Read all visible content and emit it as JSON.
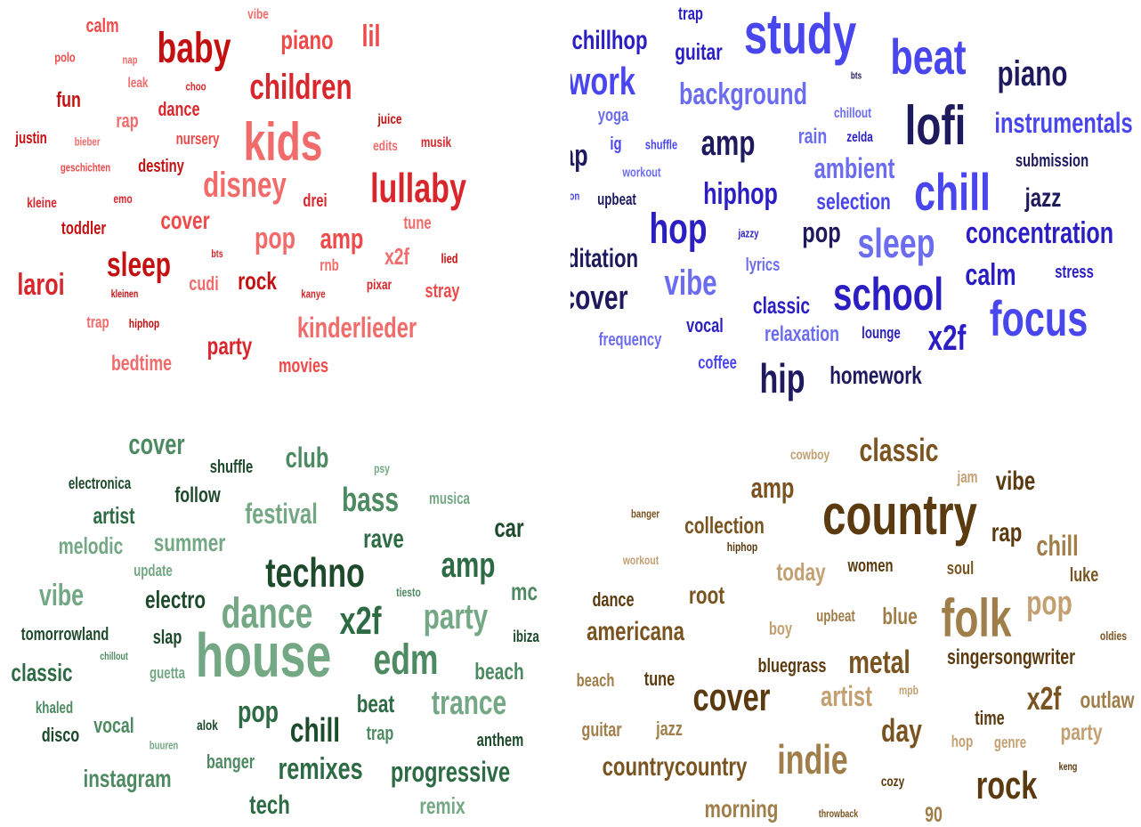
{
  "palette": {
    "red": [
      "#c41010",
      "#d9262c",
      "#ee4a4a",
      "#f26b6b"
    ],
    "blue": [
      "#1e1a5e",
      "#2b1fc4",
      "#4a46ee",
      "#6b6cf0"
    ],
    "green": [
      "#1e4a2c",
      "#2d6b44",
      "#4d8a62",
      "#74a884"
    ],
    "brown": [
      "#5a3a0e",
      "#7a5420",
      "#a07e4a",
      "#c2a072"
    ]
  },
  "clouds": [
    {
      "name": "kids-cloud",
      "words": [
        "kids",
        "baby",
        "children",
        "lullaby",
        "disney",
        "sleep",
        "piano",
        "lil",
        "pop",
        "amp",
        "laroi",
        "cover",
        "kinderlieder",
        "party",
        "rock",
        "calm",
        "fun",
        "dance",
        "rap",
        "nursery",
        "destiny",
        "toddler",
        "drei",
        "tune",
        "x2f",
        "stray",
        "cudi",
        "movies",
        "bedtime",
        "justin",
        "kleine",
        "juice",
        "edits",
        "musik",
        "trap",
        "rnb",
        "pixar",
        "lied",
        "polo",
        "leak",
        "vibe",
        "nap",
        "choo",
        "bieber",
        "geschichten",
        "emo",
        "bts",
        "kleinen",
        "kanye",
        "hiphop"
      ]
    },
    {
      "name": "study-cloud",
      "words": [
        "study",
        "beat",
        "lofi",
        "chill",
        "school",
        "focus",
        "chillhop",
        "work",
        "piano",
        "background",
        "instrumentals",
        "amp",
        "rap",
        "ambient",
        "hiphop",
        "hop",
        "sleep",
        "vibe",
        "concentration",
        "jazz",
        "pop",
        "cover",
        "meditation",
        "calm",
        "x2f",
        "hip",
        "homework",
        "classic",
        "relaxation",
        "trap",
        "guitar",
        "yoga",
        "chillout",
        "rain",
        "zelda",
        "submission",
        "selection",
        "upbeat",
        "lyrics",
        "vocal",
        "lounge",
        "stress",
        "frequency",
        "coffee",
        "ig",
        "shuffle",
        "workout",
        "reggaeton",
        "jazzy",
        "bts"
      ]
    },
    {
      "name": "edm-cloud",
      "words": [
        "house",
        "techno",
        "dance",
        "edm",
        "x2f",
        "party",
        "amp",
        "trance",
        "bass",
        "club",
        "festival",
        "rave",
        "cover",
        "chill",
        "pop",
        "remixes",
        "progressive",
        "electro",
        "vibe",
        "summer",
        "melodic",
        "artist",
        "follow",
        "shuffle",
        "electronica",
        "car",
        "musica",
        "mc",
        "ibiza",
        "beach",
        "anthem",
        "beat",
        "trap",
        "tech",
        "remix",
        "instagram",
        "banger",
        "vocal",
        "classic",
        "tomorrowland",
        "slap",
        "disco",
        "khaled",
        "update",
        "tiesto",
        "guetta",
        "chillout",
        "alok",
        "buuren",
        "psy"
      ]
    },
    {
      "name": "country-cloud",
      "words": [
        "country",
        "folk",
        "indie",
        "cover",
        "rock",
        "classic",
        "amp",
        "vibe",
        "rap",
        "chill",
        "pop",
        "metal",
        "americana",
        "collection",
        "root",
        "countrycountry",
        "day",
        "x2f",
        "artist",
        "blue",
        "today",
        "women",
        "soul",
        "luke",
        "bluegrass",
        "singersongwriter",
        "outlaw",
        "party",
        "morning",
        "dance",
        "tune",
        "jazz",
        "guitar",
        "beach",
        "boy",
        "upbeat",
        "time",
        "genre",
        "hop",
        "jam",
        "cowboy",
        "banger",
        "hiphop",
        "workout",
        "oldies",
        "mpb",
        "cozy",
        "keng",
        "throwback",
        "90"
      ]
    }
  ]
}
